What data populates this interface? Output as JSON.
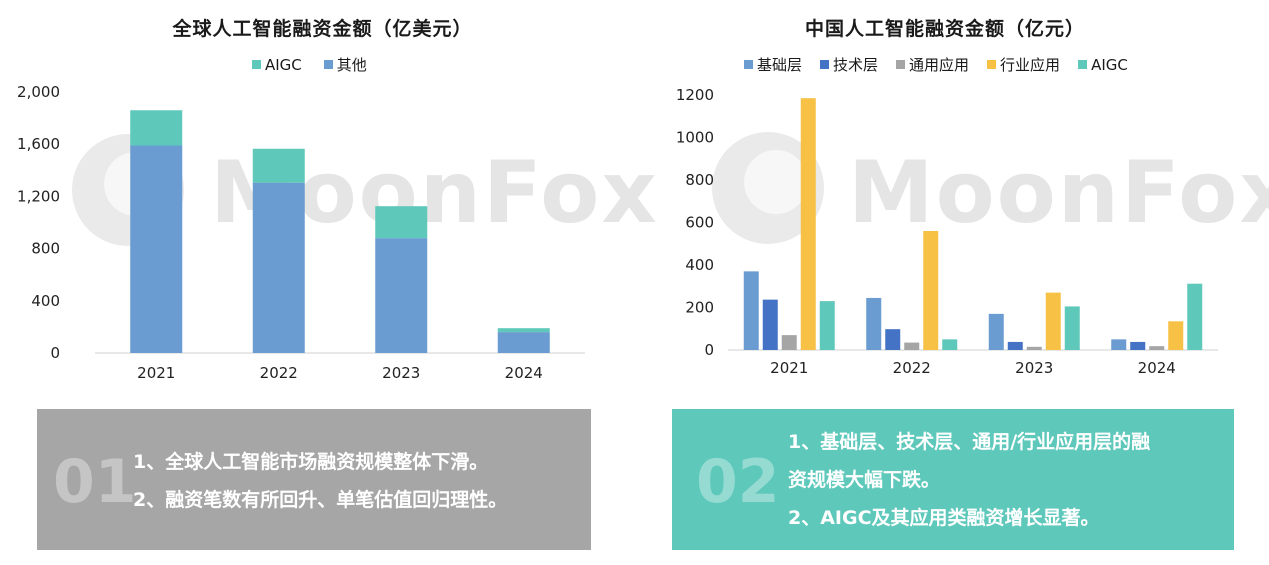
{
  "chart_data": [
    {
      "type": "bar",
      "stacked": true,
      "title": "全球人工智能融资金额（亿美元）",
      "categories": [
        "2021",
        "2022",
        "2023",
        "2024"
      ],
      "series": [
        {
          "name": "其他",
          "values": [
            1590,
            1305,
            880,
            160
          ],
          "color": "#6a9bd1"
        },
        {
          "name": "AIGC",
          "values": [
            270,
            260,
            245,
            30
          ],
          "color": "#5ec8bb"
        }
      ],
      "legend_order": [
        "AIGC",
        "其他"
      ],
      "ylim": [
        0,
        2000
      ],
      "yticks": [
        "0",
        "400",
        "800",
        "1,200",
        "1,600",
        "2,000"
      ],
      "ytick_values": [
        0,
        400,
        800,
        1200,
        1600,
        2000
      ],
      "grid": false,
      "legend_position": "top"
    },
    {
      "type": "bar",
      "stacked": false,
      "title": "中国人工智能融资金额（亿元）",
      "categories": [
        "2021",
        "2022",
        "2023",
        "2024"
      ],
      "series": [
        {
          "name": "基础层",
          "values": [
            370,
            245,
            170,
            50
          ],
          "color": "#6a9bd1"
        },
        {
          "name": "技术层",
          "values": [
            237,
            98,
            38,
            38
          ],
          "color": "#4472c4"
        },
        {
          "name": "通用应用",
          "values": [
            70,
            35,
            15,
            18
          ],
          "color": "#a5a5a5"
        },
        {
          "name": "行业应用",
          "values": [
            1185,
            560,
            270,
            135
          ],
          "color": "#f6c144"
        },
        {
          "name": "AIGC",
          "values": [
            230,
            50,
            205,
            312
          ],
          "color": "#5ec8bb"
        }
      ],
      "ylim": [
        0,
        1200
      ],
      "yticks": [
        "0",
        "200",
        "400",
        "600",
        "800",
        "1000",
        "1200"
      ],
      "ytick_values": [
        0,
        200,
        400,
        600,
        800,
        1000,
        1200
      ],
      "grid": false,
      "legend_position": "top"
    }
  ],
  "watermark": "MoonFox",
  "summaries": [
    {
      "number": "01",
      "lines": [
        "1、全球人工智能市场融资规模整体下滑。",
        "2、融资笔数有所回升、单笔估值回归理性。"
      ],
      "color": "#a6a6a6"
    },
    {
      "number": "02",
      "lines": [
        "1、基础层、技术层、通用/行业应用层的融",
        "资规模大幅下跌。",
        "2、AIGC及其应用类融资增长显著。"
      ],
      "color": "#5ec8bb"
    }
  ]
}
